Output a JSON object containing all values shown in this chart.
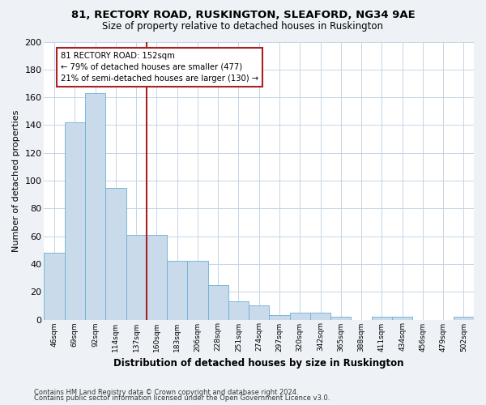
{
  "title1": "81, RECTORY ROAD, RUSKINGTON, SLEAFORD, NG34 9AE",
  "title2": "Size of property relative to detached houses in Ruskington",
  "xlabel": "Distribution of detached houses by size in Ruskington",
  "ylabel": "Number of detached properties",
  "categories": [
    "46sqm",
    "69sqm",
    "92sqm",
    "114sqm",
    "137sqm",
    "160sqm",
    "183sqm",
    "206sqm",
    "228sqm",
    "251sqm",
    "274sqm",
    "297sqm",
    "320sqm",
    "342sqm",
    "365sqm",
    "388sqm",
    "411sqm",
    "434sqm",
    "456sqm",
    "479sqm",
    "502sqm"
  ],
  "values": [
    48,
    142,
    163,
    95,
    61,
    61,
    42,
    42,
    25,
    13,
    10,
    3,
    5,
    5,
    2,
    0,
    2,
    2,
    0,
    0,
    2
  ],
  "bar_color": "#c9daea",
  "bar_edge_color": "#6aaed6",
  "vline_color": "#aa2222",
  "annotation_text": "81 RECTORY ROAD: 152sqm\n← 79% of detached houses are smaller (477)\n21% of semi-detached houses are larger (130) →",
  "annotation_box_color": "#aa2222",
  "ylim": [
    0,
    200
  ],
  "yticks": [
    0,
    20,
    40,
    60,
    80,
    100,
    120,
    140,
    160,
    180,
    200
  ],
  "footnote1": "Contains HM Land Registry data © Crown copyright and database right 2024.",
  "footnote2": "Contains public sector information licensed under the Open Government Licence v3.0.",
  "bg_color": "#eef2f7",
  "plot_bg_color": "#ffffff",
  "grid_color": "#c5d5e5"
}
